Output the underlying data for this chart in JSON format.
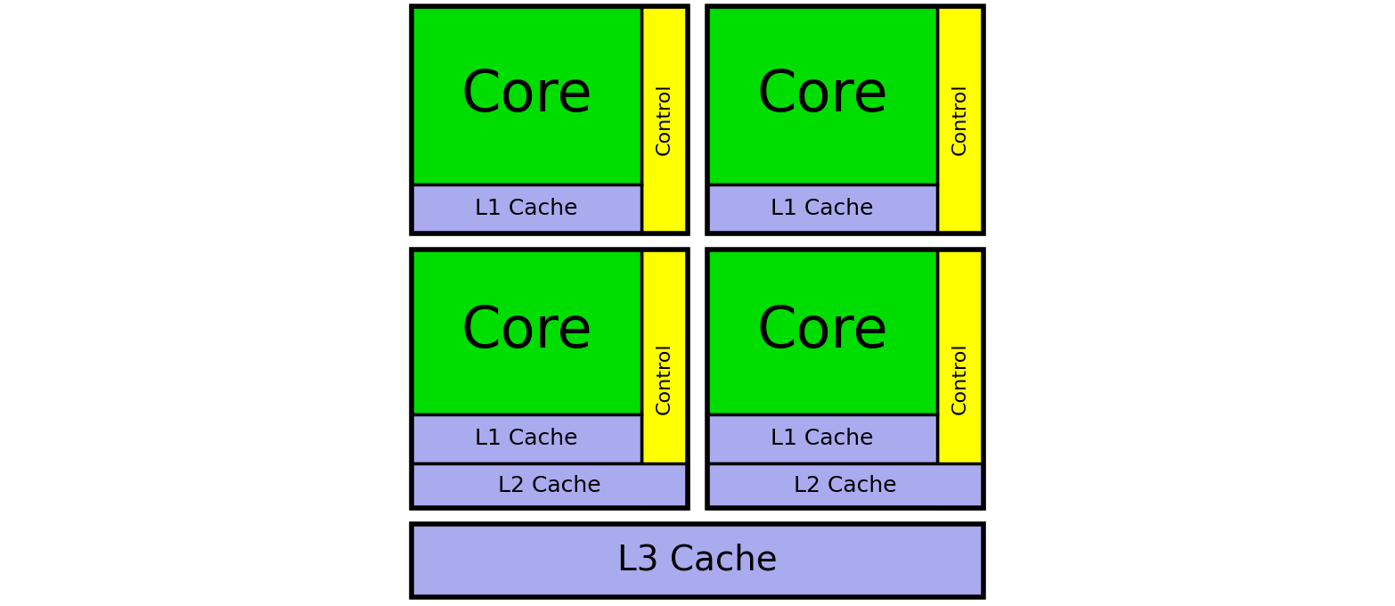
{
  "bg_color": "#ffffff",
  "green": "#00dd00",
  "yellow": "#ffff00",
  "lavender": "#aaaaee",
  "black": "#000000",
  "fig_width": 15.66,
  "fig_height": 6.8,
  "outer_lw": 4.0,
  "inner_lw": 2.5,
  "core_label": "Core",
  "l1_label": "L1 Cache",
  "l2_label": "L2 Cache",
  "l3_label": "L3 Cache",
  "control_label": "Control",
  "core_fontsize": 46,
  "cache_fontsize": 18,
  "control_fontsize": 16,
  "l3_fontsize": 28
}
